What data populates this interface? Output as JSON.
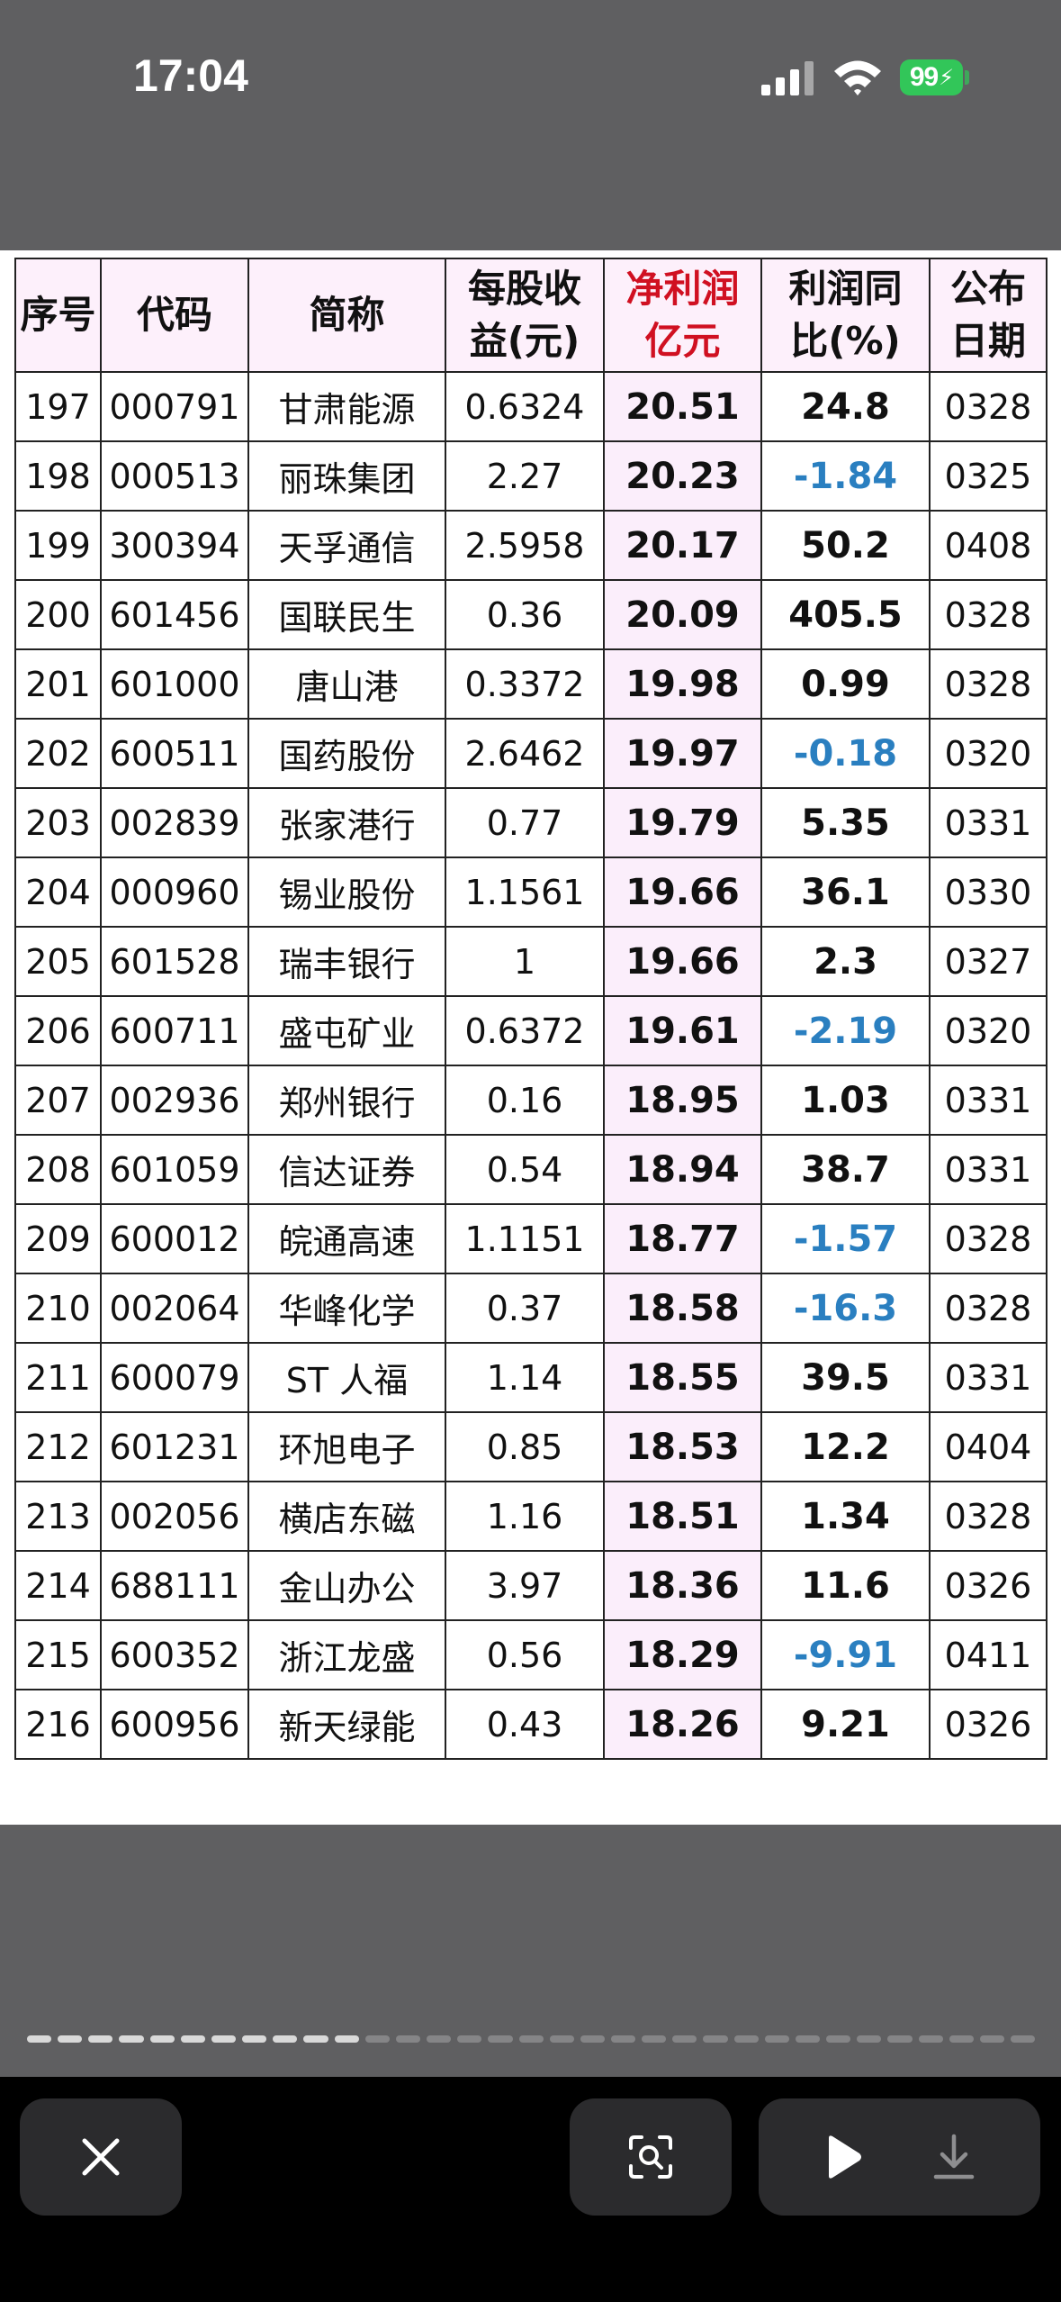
{
  "status_bar": {
    "time": "17:04",
    "battery": "99",
    "battery_color": "#32c659"
  },
  "table": {
    "headers": {
      "seq": "序号",
      "code": "代码",
      "name": "简称",
      "eps_line1": "每股收",
      "eps_line2": "益(元)",
      "profit_line1": "净利润",
      "profit_line2": "亿元",
      "yoy_line1": "利润同",
      "yoy_line2": "比(%)",
      "date_line1": "公布",
      "date_line2": "日期"
    },
    "rows": [
      {
        "seq": "197",
        "code": "000791",
        "name": "甘肃能源",
        "eps": "0.6324",
        "profit": "20.51",
        "yoy": "24.8",
        "date": "0328"
      },
      {
        "seq": "198",
        "code": "000513",
        "name": "丽珠集团",
        "eps": "2.27",
        "profit": "20.23",
        "yoy": "-1.84",
        "date": "0325"
      },
      {
        "seq": "199",
        "code": "300394",
        "name": "天孚通信",
        "eps": "2.5958",
        "profit": "20.17",
        "yoy": "50.2",
        "date": "0408"
      },
      {
        "seq": "200",
        "code": "601456",
        "name": "国联民生",
        "eps": "0.36",
        "profit": "20.09",
        "yoy": "405.5",
        "date": "0328"
      },
      {
        "seq": "201",
        "code": "601000",
        "name": "唐山港",
        "eps": "0.3372",
        "profit": "19.98",
        "yoy": "0.99",
        "date": "0328"
      },
      {
        "seq": "202",
        "code": "600511",
        "name": "国药股份",
        "eps": "2.6462",
        "profit": "19.97",
        "yoy": "-0.18",
        "date": "0320"
      },
      {
        "seq": "203",
        "code": "002839",
        "name": "张家港行",
        "eps": "0.77",
        "profit": "19.79",
        "yoy": "5.35",
        "date": "0331"
      },
      {
        "seq": "204",
        "code": "000960",
        "name": "锡业股份",
        "eps": "1.1561",
        "profit": "19.66",
        "yoy": "36.1",
        "date": "0330"
      },
      {
        "seq": "205",
        "code": "601528",
        "name": "瑞丰银行",
        "eps": "1",
        "profit": "19.66",
        "yoy": "2.3",
        "date": "0327"
      },
      {
        "seq": "206",
        "code": "600711",
        "name": "盛屯矿业",
        "eps": "0.6372",
        "profit": "19.61",
        "yoy": "-2.19",
        "date": "0320"
      },
      {
        "seq": "207",
        "code": "002936",
        "name": "郑州银行",
        "eps": "0.16",
        "profit": "18.95",
        "yoy": "1.03",
        "date": "0331"
      },
      {
        "seq": "208",
        "code": "601059",
        "name": "信达证券",
        "eps": "0.54",
        "profit": "18.94",
        "yoy": "38.7",
        "date": "0331"
      },
      {
        "seq": "209",
        "code": "600012",
        "name": "皖通高速",
        "eps": "1.1151",
        "profit": "18.77",
        "yoy": "-1.57",
        "date": "0328"
      },
      {
        "seq": "210",
        "code": "002064",
        "name": "华峰化学",
        "eps": "0.37",
        "profit": "18.58",
        "yoy": "-16.3",
        "date": "0328"
      },
      {
        "seq": "211",
        "code": "600079",
        "name": "ST 人福",
        "eps": "1.14",
        "profit": "18.55",
        "yoy": "39.5",
        "date": "0331"
      },
      {
        "seq": "212",
        "code": "601231",
        "name": "环旭电子",
        "eps": "0.85",
        "profit": "18.53",
        "yoy": "12.2",
        "date": "0404"
      },
      {
        "seq": "213",
        "code": "002056",
        "name": "横店东磁",
        "eps": "1.16",
        "profit": "18.51",
        "yoy": "1.34",
        "date": "0328"
      },
      {
        "seq": "214",
        "code": "688111",
        "name": "金山办公",
        "eps": "3.97",
        "profit": "18.36",
        "yoy": "11.6",
        "date": "0326"
      },
      {
        "seq": "215",
        "code": "600352",
        "name": "浙江龙盛",
        "eps": "0.56",
        "profit": "18.29",
        "yoy": "-9.91",
        "date": "0411"
      },
      {
        "seq": "216",
        "code": "600956",
        "name": "新天绿能",
        "eps": "0.43",
        "profit": "18.26",
        "yoy": "9.21",
        "date": "0326"
      }
    ],
    "colors": {
      "profit_header": "#d01021",
      "negative_value": "#2a7fc0",
      "header_background": "#fdf0fb"
    }
  },
  "page_indicator": {
    "total": 33,
    "seen": 11
  },
  "toolbar": {
    "close_icon": "close-icon",
    "lens_icon": "visual-lookup-icon",
    "play_icon": "play-icon",
    "download_icon": "download-icon"
  }
}
